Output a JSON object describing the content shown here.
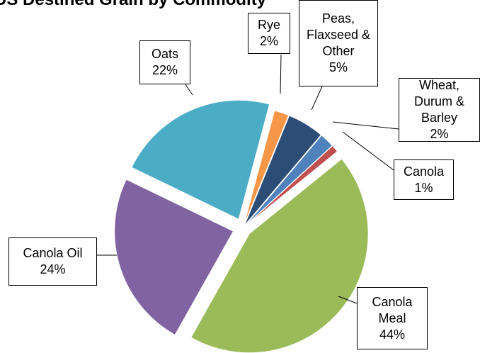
{
  "chart_data": {
    "type": "pie",
    "title": "US Destined Grain by Commodity",
    "categories": [
      "Rye",
      "Peas, Flaxseed & Other",
      "Wheat, Durum & Barley",
      "Canola",
      "Canola Meal",
      "Canola Oil",
      "Oats"
    ],
    "values": [
      2,
      5,
      2,
      1,
      44,
      24,
      22
    ],
    "value_labels": [
      "2%",
      "5%",
      "2%",
      "1%",
      "44%",
      "24%",
      "22%"
    ],
    "colors": [
      "#f79646",
      "#2c4d75",
      "#4f81bd",
      "#c0504d",
      "#9bbb59",
      "#8064a2",
      "#4bacc6"
    ]
  }
}
